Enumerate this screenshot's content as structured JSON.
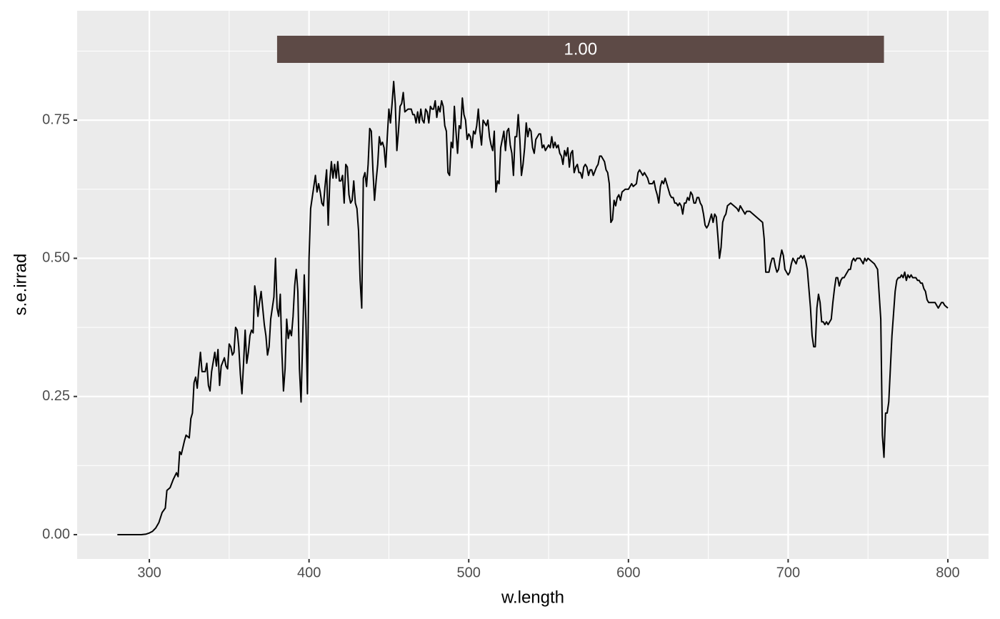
{
  "chart_data": {
    "type": "line",
    "xlabel": "w.length",
    "ylabel": "s.e.irrad",
    "xlim": [
      254.8,
      825.5
    ],
    "ylim": [
      -0.044,
      0.948
    ],
    "xticks": [
      300,
      400,
      500,
      600,
      700,
      800
    ],
    "yticks": [
      {
        "value": 0,
        "label": "0.00"
      },
      {
        "value": 0.25,
        "label": "0.25"
      },
      {
        "value": 0.5,
        "label": "0.50"
      },
      {
        "value": 0.75,
        "label": "0.75"
      }
    ],
    "x_minor_breaks": [
      350,
      450,
      550,
      650,
      750
    ],
    "y_minor_breaks": [
      0.125,
      0.375,
      0.625,
      0.875
    ],
    "grid": true,
    "color": "#000000",
    "annotation": {
      "xmin": 380,
      "xmax": 760,
      "label": "1.00",
      "color": "#5D4A46"
    },
    "x": [
      280,
      285,
      290,
      295,
      298,
      300,
      302,
      304,
      306,
      308,
      310,
      311,
      313,
      315,
      317,
      318,
      319,
      320,
      322,
      323,
      325,
      326,
      327,
      328,
      329,
      330,
      331,
      332,
      333,
      335,
      336,
      337,
      338,
      339,
      341,
      342,
      343,
      344,
      345,
      347,
      348,
      349,
      350,
      351,
      352,
      353,
      354,
      355,
      356,
      357,
      358,
      359,
      360,
      361,
      362,
      363,
      364,
      365,
      366,
      367,
      368,
      369,
      370,
      371,
      372,
      373,
      374,
      375,
      376,
      378,
      379,
      380,
      381,
      382,
      383,
      384,
      385,
      386,
      387,
      388,
      389,
      390,
      391,
      392,
      393,
      394,
      395,
      396,
      397,
      398,
      399,
      400,
      401,
      402,
      403,
      404,
      405,
      406,
      407,
      408,
      409,
      410,
      411,
      412,
      413,
      414,
      415,
      416,
      417,
      418,
      419,
      420,
      421,
      422,
      423,
      424,
      425,
      426,
      427,
      428,
      429,
      430,
      431,
      432,
      433,
      434,
      435,
      436,
      437,
      438,
      439,
      440,
      441,
      442,
      443,
      444,
      445,
      446,
      447,
      448,
      449,
      450,
      451,
      452,
      453,
      454,
      455,
      456,
      457,
      458,
      459,
      460,
      462,
      464,
      465,
      466,
      467,
      468,
      469,
      470,
      471,
      472,
      473,
      474,
      475,
      476,
      477,
      478,
      479,
      480,
      481,
      482,
      483,
      484,
      485,
      486,
      487,
      488,
      489,
      490,
      491,
      492,
      493,
      494,
      495,
      496,
      497,
      498,
      499,
      500,
      501,
      502,
      503,
      504,
      505,
      506,
      507,
      508,
      509,
      510,
      511,
      512,
      513,
      514,
      515,
      516,
      517,
      518,
      519,
      520,
      522,
      523,
      524,
      525,
      526,
      527,
      528,
      529,
      530,
      531,
      532,
      533,
      534,
      535,
      536,
      537,
      538,
      539,
      540,
      541,
      542,
      543,
      544,
      545,
      546,
      547,
      548,
      549,
      550,
      551,
      552,
      553,
      554,
      555,
      556,
      557,
      558,
      559,
      560,
      561,
      562,
      563,
      564,
      565,
      566,
      567,
      568,
      569,
      570,
      571,
      572,
      573,
      574,
      575,
      576,
      577,
      578,
      580,
      581,
      582,
      583,
      584,
      585,
      586,
      587,
      588,
      589,
      590,
      591,
      592,
      593,
      594,
      595,
      596,
      598,
      600,
      601,
      602,
      603,
      605,
      606,
      607,
      608,
      609,
      610,
      612,
      613,
      615,
      616,
      617,
      618,
      619,
      620,
      621,
      622,
      623,
      624,
      625,
      626,
      627,
      628,
      629,
      630,
      631,
      632,
      633,
      634,
      635,
      636,
      637,
      638,
      639,
      640,
      641,
      642,
      643,
      644,
      645,
      646,
      647,
      648,
      649,
      650,
      651,
      652,
      653,
      654,
      655,
      656,
      657,
      658,
      659,
      660,
      661,
      662,
      664,
      666,
      668,
      669,
      670,
      671,
      673,
      674,
      676,
      678,
      680,
      682,
      684,
      685,
      686,
      688,
      689,
      690,
      691,
      692,
      693,
      694,
      695,
      696,
      697,
      698,
      699,
      700,
      701,
      702,
      703,
      704,
      705,
      706,
      707,
      708,
      709,
      710,
      711,
      712,
      713,
      714,
      715,
      716,
      717,
      718,
      719,
      720,
      721,
      722,
      723,
      724,
      725,
      726,
      727,
      728,
      729,
      730,
      731,
      732,
      733,
      734,
      735,
      736,
      737,
      738,
      739,
      740,
      741,
      742,
      743,
      744,
      745,
      746,
      747,
      748,
      749,
      750,
      752,
      754,
      756,
      758,
      759,
      760,
      761,
      762,
      763,
      764,
      765,
      766,
      767,
      768,
      769,
      770,
      771,
      772,
      773,
      774,
      775,
      776,
      777,
      778,
      780,
      781,
      782,
      783,
      784,
      785,
      786,
      787,
      788,
      790,
      792,
      793,
      794,
      795,
      796,
      797,
      798,
      800
    ],
    "values": [
      0,
      0,
      0,
      0,
      0.001,
      0.003,
      0.006,
      0.012,
      0.022,
      0.04,
      0.048,
      0.08,
      0.085,
      0.1,
      0.112,
      0.105,
      0.15,
      0.145,
      0.17,
      0.18,
      0.175,
      0.21,
      0.22,
      0.275,
      0.285,
      0.265,
      0.3,
      0.33,
      0.295,
      0.295,
      0.31,
      0.27,
      0.26,
      0.295,
      0.33,
      0.305,
      0.335,
      0.27,
      0.305,
      0.32,
      0.305,
      0.3,
      0.345,
      0.34,
      0.325,
      0.33,
      0.375,
      0.37,
      0.34,
      0.29,
      0.255,
      0.31,
      0.37,
      0.31,
      0.33,
      0.36,
      0.37,
      0.365,
      0.45,
      0.43,
      0.395,
      0.42,
      0.44,
      0.41,
      0.38,
      0.36,
      0.325,
      0.34,
      0.39,
      0.43,
      0.5,
      0.41,
      0.395,
      0.435,
      0.33,
      0.26,
      0.3,
      0.39,
      0.355,
      0.37,
      0.36,
      0.395,
      0.45,
      0.48,
      0.44,
      0.3,
      0.24,
      0.35,
      0.47,
      0.39,
      0.255,
      0.5,
      0.59,
      0.61,
      0.63,
      0.65,
      0.62,
      0.635,
      0.62,
      0.6,
      0.595,
      0.63,
      0.66,
      0.56,
      0.64,
      0.675,
      0.645,
      0.67,
      0.645,
      0.675,
      0.64,
      0.64,
      0.65,
      0.6,
      0.67,
      0.665,
      0.615,
      0.6,
      0.605,
      0.64,
      0.6,
      0.59,
      0.55,
      0.46,
      0.41,
      0.645,
      0.655,
      0.63,
      0.67,
      0.735,
      0.73,
      0.66,
      0.605,
      0.64,
      0.67,
      0.72,
      0.705,
      0.71,
      0.7,
      0.665,
      0.72,
      0.77,
      0.745,
      0.78,
      0.82,
      0.78,
      0.695,
      0.73,
      0.775,
      0.78,
      0.8,
      0.765,
      0.77,
      0.77,
      0.76,
      0.76,
      0.745,
      0.765,
      0.745,
      0.77,
      0.75,
      0.745,
      0.77,
      0.765,
      0.745,
      0.775,
      0.77,
      0.77,
      0.785,
      0.755,
      0.775,
      0.765,
      0.785,
      0.775,
      0.74,
      0.73,
      0.655,
      0.65,
      0.71,
      0.7,
      0.775,
      0.73,
      0.69,
      0.74,
      0.735,
      0.79,
      0.76,
      0.75,
      0.715,
      0.725,
      0.72,
      0.7,
      0.73,
      0.725,
      0.74,
      0.77,
      0.73,
      0.705,
      0.75,
      0.745,
      0.74,
      0.75,
      0.72,
      0.705,
      0.695,
      0.73,
      0.62,
      0.64,
      0.635,
      0.7,
      0.73,
      0.695,
      0.73,
      0.735,
      0.705,
      0.69,
      0.65,
      0.72,
      0.72,
      0.76,
      0.715,
      0.65,
      0.67,
      0.7,
      0.745,
      0.72,
      0.735,
      0.73,
      0.7,
      0.69,
      0.715,
      0.72,
      0.725,
      0.725,
      0.7,
      0.705,
      0.695,
      0.7,
      0.705,
      0.7,
      0.72,
      0.7,
      0.71,
      0.7,
      0.705,
      0.69,
      0.685,
      0.67,
      0.695,
      0.685,
      0.7,
      0.665,
      0.69,
      0.695,
      0.655,
      0.665,
      0.67,
      0.655,
      0.655,
      0.645,
      0.665,
      0.67,
      0.665,
      0.65,
      0.66,
      0.66,
      0.65,
      0.665,
      0.67,
      0.685,
      0.685,
      0.68,
      0.675,
      0.66,
      0.655,
      0.635,
      0.565,
      0.57,
      0.605,
      0.595,
      0.61,
      0.615,
      0.605,
      0.62,
      0.625,
      0.625,
      0.63,
      0.635,
      0.63,
      0.635,
      0.655,
      0.66,
      0.655,
      0.65,
      0.655,
      0.645,
      0.635,
      0.635,
      0.64,
      0.625,
      0.615,
      0.6,
      0.63,
      0.64,
      0.635,
      0.645,
      0.635,
      0.625,
      0.615,
      0.61,
      0.61,
      0.6,
      0.6,
      0.595,
      0.6,
      0.595,
      0.58,
      0.6,
      0.6,
      0.61,
      0.605,
      0.62,
      0.615,
      0.6,
      0.6,
      0.61,
      0.61,
      0.6,
      0.595,
      0.58,
      0.56,
      0.555,
      0.56,
      0.57,
      0.58,
      0.565,
      0.58,
      0.575,
      0.54,
      0.5,
      0.52,
      0.565,
      0.575,
      0.58,
      0.595,
      0.6,
      0.595,
      0.59,
      0.585,
      0.595,
      0.59,
      0.58,
      0.585,
      0.585,
      0.58,
      0.575,
      0.57,
      0.565,
      0.535,
      0.475,
      0.475,
      0.49,
      0.5,
      0.5,
      0.485,
      0.475,
      0.48,
      0.5,
      0.515,
      0.505,
      0.48,
      0.475,
      0.47,
      0.475,
      0.49,
      0.5,
      0.495,
      0.49,
      0.5,
      0.5,
      0.505,
      0.5,
      0.505,
      0.495,
      0.48,
      0.445,
      0.41,
      0.36,
      0.34,
      0.34,
      0.41,
      0.435,
      0.42,
      0.385,
      0.385,
      0.38,
      0.385,
      0.38,
      0.385,
      0.39,
      0.42,
      0.445,
      0.465,
      0.465,
      0.45,
      0.46,
      0.465,
      0.465,
      0.47,
      0.475,
      0.48,
      0.48,
      0.495,
      0.5,
      0.495,
      0.5,
      0.5,
      0.5,
      0.495,
      0.49,
      0.5,
      0.495,
      0.5,
      0.495,
      0.49,
      0.48,
      0.39,
      0.18,
      0.14,
      0.22,
      0.22,
      0.24,
      0.3,
      0.36,
      0.4,
      0.44,
      0.46,
      0.465,
      0.465,
      0.47,
      0.465,
      0.475,
      0.46,
      0.47,
      0.465,
      0.47,
      0.465,
      0.465,
      0.46,
      0.46,
      0.455,
      0.455,
      0.445,
      0.44,
      0.425,
      0.42,
      0.42,
      0.42,
      0.415,
      0.41,
      0.415,
      0.42,
      0.42,
      0.415,
      0.41
    ]
  }
}
